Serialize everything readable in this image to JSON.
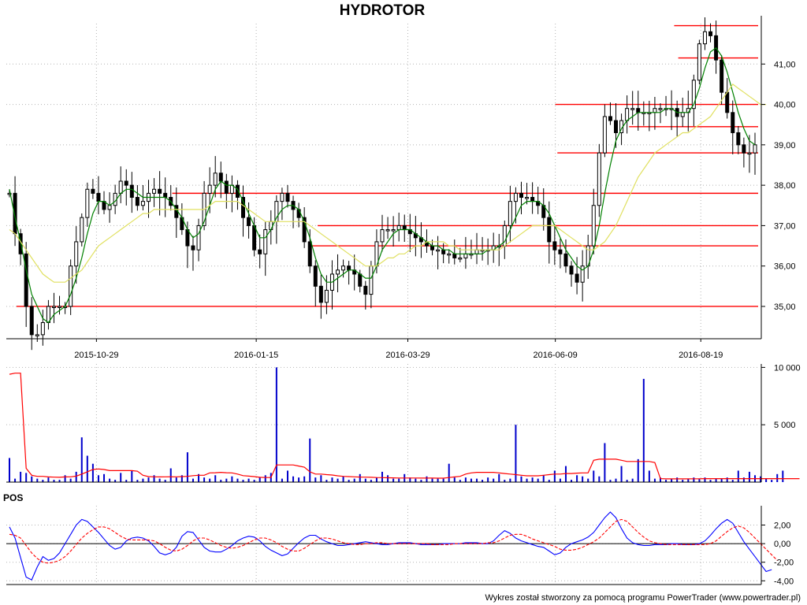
{
  "chart_data": [
    {
      "type": "candlestick",
      "title": "HYDROTOR",
      "xlabel": "",
      "ylabel": "",
      "ylim": [
        34.2,
        42.0
      ],
      "y_ticks": [
        35,
        36,
        37,
        38,
        39,
        40,
        41
      ],
      "y_tick_labels": [
        "35,00",
        "36,00",
        "37,00",
        "38,00",
        "39,00",
        "40,00",
        "41,00"
      ],
      "x_tick_labels": [
        "2015-10-29",
        "2016-01-15",
        "2016-03-29",
        "2016-06-09",
        "2016-08-19"
      ],
      "grid": true,
      "series": [
        {
          "kind": "close",
          "values": [
            37.8,
            36.8,
            36.3,
            35.0,
            34.3,
            34.3,
            34.6,
            35.0,
            35.0,
            35.0,
            35.0,
            36.0,
            36.6,
            37.2,
            37.9,
            37.8,
            37.6,
            37.4,
            37.5,
            37.8,
            38.1,
            38.0,
            37.7,
            37.5,
            37.6,
            37.8,
            37.9,
            37.8,
            37.7,
            37.5,
            37.2,
            36.9,
            36.5,
            36.4,
            37.0,
            37.8,
            38.0,
            38.3,
            38.1,
            37.8,
            38.0,
            37.7,
            37.2,
            37.0,
            36.4,
            36.3,
            36.9,
            37.1,
            37.6,
            37.8,
            37.6,
            37.4,
            37.2,
            36.6,
            36.0,
            35.5,
            35.1,
            35.4,
            35.8,
            35.9,
            36.0,
            35.9,
            35.8,
            35.5,
            35.3,
            36.0,
            36.6,
            36.9,
            36.9,
            36.9,
            37.0,
            36.9,
            36.8,
            36.7,
            36.6,
            36.5,
            36.4,
            36.4,
            36.3,
            36.3,
            36.2,
            36.2,
            36.3,
            36.3,
            36.4,
            36.4,
            36.4,
            36.5,
            36.5,
            37.0,
            37.6,
            37.8,
            37.7,
            37.7,
            37.6,
            37.5,
            37.2,
            36.6,
            36.4,
            36.3,
            36.0,
            35.8,
            35.6,
            36.0,
            36.5,
            37.5,
            38.8,
            39.7,
            39.6,
            39.3,
            39.6,
            39.9,
            39.9,
            39.8,
            39.8,
            39.8,
            39.9,
            39.9,
            39.9,
            39.9,
            39.7,
            39.8,
            39.9,
            40.6,
            41.5,
            41.8,
            41.7,
            41.1,
            40.3,
            39.8,
            39.3,
            39.0,
            38.8,
            38.8,
            39.0
          ]
        },
        {
          "kind": "sma_short",
          "color": "#008000",
          "values": [
            37.9,
            37.2,
            36.6,
            35.9,
            35.3,
            35.0,
            34.7,
            34.6,
            34.8,
            34.9,
            35.0,
            35.3,
            35.7,
            36.2,
            36.8,
            37.3,
            37.6,
            37.6,
            37.5,
            37.6,
            37.8,
            37.9,
            37.9,
            37.8,
            37.7,
            37.7,
            37.7,
            37.7,
            37.7,
            37.6,
            37.4,
            37.2,
            36.9,
            36.7,
            36.8,
            37.1,
            37.5,
            37.9,
            38.1,
            38.0,
            38.0,
            37.9,
            37.6,
            37.3,
            37.0,
            36.7,
            36.7,
            36.9,
            37.2,
            37.4,
            37.5,
            37.5,
            37.4,
            37.1,
            36.7,
            36.2,
            35.8,
            35.6,
            35.6,
            35.7,
            35.8,
            35.9,
            35.9,
            35.8,
            35.7,
            35.7,
            36.0,
            36.4,
            36.6,
            36.8,
            36.9,
            36.9,
            36.9,
            36.8,
            36.7,
            36.6,
            36.5,
            36.5,
            36.4,
            36.4,
            36.3,
            36.3,
            36.3,
            36.3,
            36.3,
            36.3,
            36.4,
            36.4,
            36.5,
            36.6,
            36.9,
            37.2,
            37.5,
            37.6,
            37.6,
            37.6,
            37.5,
            37.3,
            37.0,
            36.7,
            36.4,
            36.2,
            36.0,
            35.9,
            36.0,
            36.4,
            37.0,
            37.8,
            38.5,
            39.1,
            39.4,
            39.6,
            39.7,
            39.8,
            39.8,
            39.8,
            39.8,
            39.8,
            39.9,
            39.9,
            39.8,
            39.8,
            39.8,
            40.0,
            40.4,
            40.9,
            41.3,
            41.4,
            41.2,
            40.8,
            40.3,
            39.8,
            39.4,
            39.1,
            39.0
          ]
        },
        {
          "kind": "sma_long",
          "color": "#e0e060",
          "values": [
            36.9,
            36.8,
            36.6,
            36.4,
            36.2,
            36.0,
            35.8,
            35.7,
            35.6,
            35.6,
            35.6,
            35.7,
            35.8,
            35.9,
            36.1,
            36.3,
            36.5,
            36.6,
            36.7,
            36.8,
            36.9,
            37.0,
            37.1,
            37.2,
            37.3,
            37.3,
            37.4,
            37.4,
            37.4,
            37.4,
            37.4,
            37.4,
            37.4,
            37.4,
            37.4,
            37.4,
            37.5,
            37.6,
            37.6,
            37.6,
            37.6,
            37.6,
            37.5,
            37.4,
            37.3,
            37.2,
            37.1,
            37.1,
            37.1,
            37.1,
            37.1,
            37.1,
            37.1,
            37.1,
            37.0,
            36.9,
            36.8,
            36.7,
            36.6,
            36.5,
            36.4,
            36.3,
            36.2,
            36.1,
            36.0,
            36.0,
            36.0,
            36.1,
            36.2,
            36.2,
            36.3,
            36.3,
            36.4,
            36.5,
            36.5,
            36.6,
            36.6,
            36.6,
            36.6,
            36.5,
            36.5,
            36.4,
            36.4,
            36.4,
            36.4,
            36.4,
            36.4,
            36.4,
            36.4,
            36.5,
            36.6,
            36.7,
            36.8,
            36.9,
            37.0,
            37.0,
            37.0,
            37.0,
            37.0,
            36.9,
            36.8,
            36.7,
            36.6,
            36.5,
            36.4,
            36.4,
            36.5,
            36.6,
            36.8,
            37.0,
            37.3,
            37.6,
            37.9,
            38.2,
            38.4,
            38.6,
            38.8,
            38.9,
            39.0,
            39.1,
            39.2,
            39.3,
            39.3,
            39.4,
            39.5,
            39.6,
            39.7,
            39.9,
            40.1,
            40.3,
            40.5,
            40.4,
            40.3,
            40.2,
            40.1,
            40.0,
            40.0
          ]
        }
      ],
      "support_resistance_levels": [
        {
          "value": 41.95,
          "x_range": [
            "2016-08-06",
            "2016-09-16"
          ]
        },
        {
          "value": 41.15,
          "x_range": [
            "2016-08-08",
            "2016-09-16"
          ]
        },
        {
          "value": 40.0,
          "x_range": [
            "2016-06-09",
            "2016-09-16"
          ]
        },
        {
          "value": 39.45,
          "x_range": [
            "2016-07-15",
            "2016-09-16"
          ]
        },
        {
          "value": 38.8,
          "x_range": [
            "2016-06-10",
            "2016-09-16"
          ]
        },
        {
          "value": 37.8,
          "x_range": [
            "2015-12-05",
            "2016-09-16"
          ]
        },
        {
          "value": 37.0,
          "x_range": [
            "2016-02-14",
            "2016-09-16"
          ]
        },
        {
          "value": 36.5,
          "x_range": [
            "2016-02-10",
            "2016-09-16"
          ]
        },
        {
          "value": 35.0,
          "x_range": [
            "2015-09-20",
            "2016-09-16"
          ]
        }
      ],
      "level_color": "#ff0000"
    },
    {
      "type": "bar",
      "title": "",
      "y_ticks": [
        5000,
        10000
      ],
      "y_tick_labels": [
        "5 000",
        "10 000"
      ],
      "ylim": [
        0,
        10300
      ],
      "bar_color": "#0000cc",
      "values": [
        2100,
        300,
        900,
        800,
        500,
        300,
        200,
        400,
        200,
        200,
        600,
        300,
        900,
        3900,
        2300,
        1600,
        600,
        700,
        300,
        200,
        800,
        200,
        1000,
        200,
        300,
        400,
        600,
        300,
        200,
        1200,
        400,
        600,
        2600,
        300,
        700,
        400,
        300,
        600,
        200,
        300,
        500,
        300,
        200,
        300,
        200,
        400,
        600,
        800,
        10000,
        300,
        1000,
        500,
        400,
        500,
        3800,
        400,
        600,
        200,
        400,
        300,
        500,
        200,
        300,
        700,
        300,
        200,
        400,
        900,
        600,
        300,
        300,
        700,
        400,
        300,
        200,
        500,
        300,
        300,
        300,
        1600,
        400,
        200,
        400,
        300,
        300,
        200,
        400,
        300,
        700,
        200,
        300,
        5000,
        500,
        300,
        400,
        300,
        600,
        200,
        1000,
        300,
        1400,
        200,
        600,
        500,
        300,
        1000,
        500,
        3400,
        200,
        300,
        1400,
        200,
        300,
        2000,
        9000,
        1000,
        300,
        400,
        200,
        300,
        400,
        200,
        300,
        400,
        300,
        400,
        200,
        300,
        300,
        400,
        200,
        1000,
        400,
        900,
        600,
        500,
        300,
        200,
        700,
        1000
      ],
      "average_line": {
        "color": "#ff0000",
        "values": [
          9400,
          9500,
          9500,
          1200,
          600,
          500,
          500,
          450,
          430,
          420,
          450,
          460,
          520,
          700,
          900,
          1100,
          1150,
          1100,
          1000,
          1000,
          1000,
          1000,
          1000,
          950,
          600,
          480,
          460,
          450,
          460,
          470,
          460,
          480,
          500,
          560,
          600,
          600,
          800,
          820,
          850,
          820,
          800,
          700,
          560,
          520,
          480,
          420,
          400,
          400,
          1500,
          1500,
          1500,
          1500,
          1400,
          1300,
          900,
          700,
          700,
          650,
          620,
          550,
          500,
          480,
          460,
          440,
          430,
          420,
          400,
          390,
          380,
          370,
          360,
          360,
          360,
          360,
          350,
          350,
          350,
          340,
          340,
          400,
          450,
          500,
          700,
          800,
          850,
          850,
          850,
          850,
          800,
          750,
          700,
          650,
          600,
          550,
          550,
          550,
          600,
          650,
          700,
          700,
          750,
          750,
          780,
          800,
          800,
          1900,
          2000,
          2000,
          2000,
          2000,
          1900,
          1800,
          1800,
          1800,
          1800,
          1800,
          1700,
          300,
          280,
          280,
          280,
          280,
          280,
          290,
          290,
          300,
          300,
          300,
          300,
          300,
          300,
          300,
          300,
          300,
          300,
          300,
          300,
          300,
          300,
          300,
          300,
          300,
          300
        ]
      }
    },
    {
      "type": "line",
      "title": "POS",
      "ylim": [
        -4.4,
        3.4
      ],
      "y_ticks": [
        2,
        0,
        -2,
        -4
      ],
      "y_tick_labels": [
        "2,00",
        "0,00",
        "-2,00",
        "-4,00"
      ],
      "series": [
        {
          "color": "#0000ff",
          "values": [
            1.8,
            0.6,
            -1.5,
            -3.6,
            -3.9,
            -2.5,
            -1.4,
            -1.8,
            -1.6,
            -1.0,
            0.0,
            1.0,
            2.0,
            2.6,
            2.4,
            1.8,
            1.2,
            0.5,
            -0.2,
            -0.6,
            -0.4,
            0.3,
            0.6,
            0.7,
            0.6,
            0.3,
            -0.3,
            -1.0,
            -1.2,
            -1.0,
            -0.4,
            0.8,
            1.3,
            1.2,
            0.4,
            -0.4,
            -0.8,
            -0.9,
            -0.9,
            -0.6,
            -0.2,
            0.3,
            0.6,
            0.8,
            0.7,
            0.3,
            -0.3,
            -0.7,
            -1.0,
            -1.3,
            -1.1,
            -0.5,
            0.1,
            0.6,
            0.9,
            0.9,
            0.5,
            0.2,
            0.0,
            -0.2,
            -0.2,
            -0.1,
            0.0,
            0.1,
            0.2,
            0.1,
            0.0,
            -0.1,
            -0.1,
            0.0,
            0.1,
            0.1,
            0.1,
            0.0,
            -0.1,
            -0.1,
            -0.1,
            -0.1,
            0.0,
            0.0,
            0.0,
            0.0,
            0.1,
            0.1,
            0.1,
            0.0,
            0.0,
            0.3,
            0.9,
            1.4,
            1.1,
            0.6,
            0.3,
            0.1,
            -0.1,
            -0.3,
            -0.4,
            -0.8,
            -1.2,
            -1.0,
            -0.4,
            0.0,
            0.2,
            0.4,
            0.7,
            1.2,
            2.0,
            2.8,
            3.4,
            2.8,
            1.6,
            0.6,
            0.1,
            -0.1,
            -0.2,
            -0.2,
            -0.1,
            -0.1,
            -0.1,
            0.0,
            0.0,
            -0.1,
            -0.1,
            -0.1,
            0.0,
            0.3,
            0.9,
            1.6,
            2.2,
            2.6,
            2.2,
            1.2,
            0.2,
            -0.6,
            -1.4,
            -2.2,
            -3.0,
            -2.8
          ]
        },
        {
          "color": "#ff0000",
          "dashed": true,
          "values": [
            1.0,
            0.9,
            0.6,
            -0.2,
            -1.0,
            -1.6,
            -2.0,
            -2.1,
            -2.0,
            -1.8,
            -1.4,
            -0.8,
            -0.1,
            0.6,
            1.1,
            1.5,
            1.8,
            1.8,
            1.6,
            1.2,
            0.8,
            0.5,
            0.4,
            0.4,
            0.4,
            0.4,
            0.3,
            0.0,
            -0.4,
            -0.7,
            -0.8,
            -0.6,
            -0.2,
            0.3,
            0.6,
            0.6,
            0.4,
            0.1,
            -0.2,
            -0.4,
            -0.5,
            -0.4,
            -0.2,
            0.1,
            0.4,
            0.6,
            0.6,
            0.4,
            0.1,
            -0.3,
            -0.6,
            -0.8,
            -0.8,
            -0.5,
            -0.1,
            0.3,
            0.6,
            0.6,
            0.5,
            0.3,
            0.1,
            0.0,
            -0.1,
            -0.1,
            0.0,
            0.0,
            0.1,
            0.1,
            0.0,
            0.0,
            0.0,
            0.0,
            0.0,
            0.0,
            0.0,
            0.0,
            -0.1,
            -0.1,
            -0.1,
            -0.1,
            0.0,
            0.0,
            0.0,
            0.0,
            0.0,
            0.0,
            0.1,
            0.1,
            0.3,
            0.6,
            0.9,
            1.0,
            1.0,
            0.8,
            0.5,
            0.3,
            0.1,
            -0.1,
            -0.3,
            -0.6,
            -0.7,
            -0.7,
            -0.6,
            -0.4,
            -0.1,
            0.2,
            0.6,
            1.2,
            1.8,
            2.4,
            2.6,
            2.4,
            1.8,
            1.2,
            0.7,
            0.3,
            0.1,
            0.0,
            -0.1,
            -0.1,
            -0.1,
            -0.1,
            -0.1,
            -0.1,
            -0.1,
            -0.1,
            0.0,
            0.3,
            0.8,
            1.3,
            1.7,
            1.9,
            1.7,
            1.2,
            0.6,
            0.0,
            -0.6,
            -1.2,
            -1.8
          ]
        }
      ]
    }
  ],
  "footer_text": "Wykres został stworzony za pomocą programu PowerTrader (www.powertrader.pl)",
  "colors": {
    "grid": "#b4b4b4",
    "candle": "#000000",
    "background": "#ffffff"
  }
}
